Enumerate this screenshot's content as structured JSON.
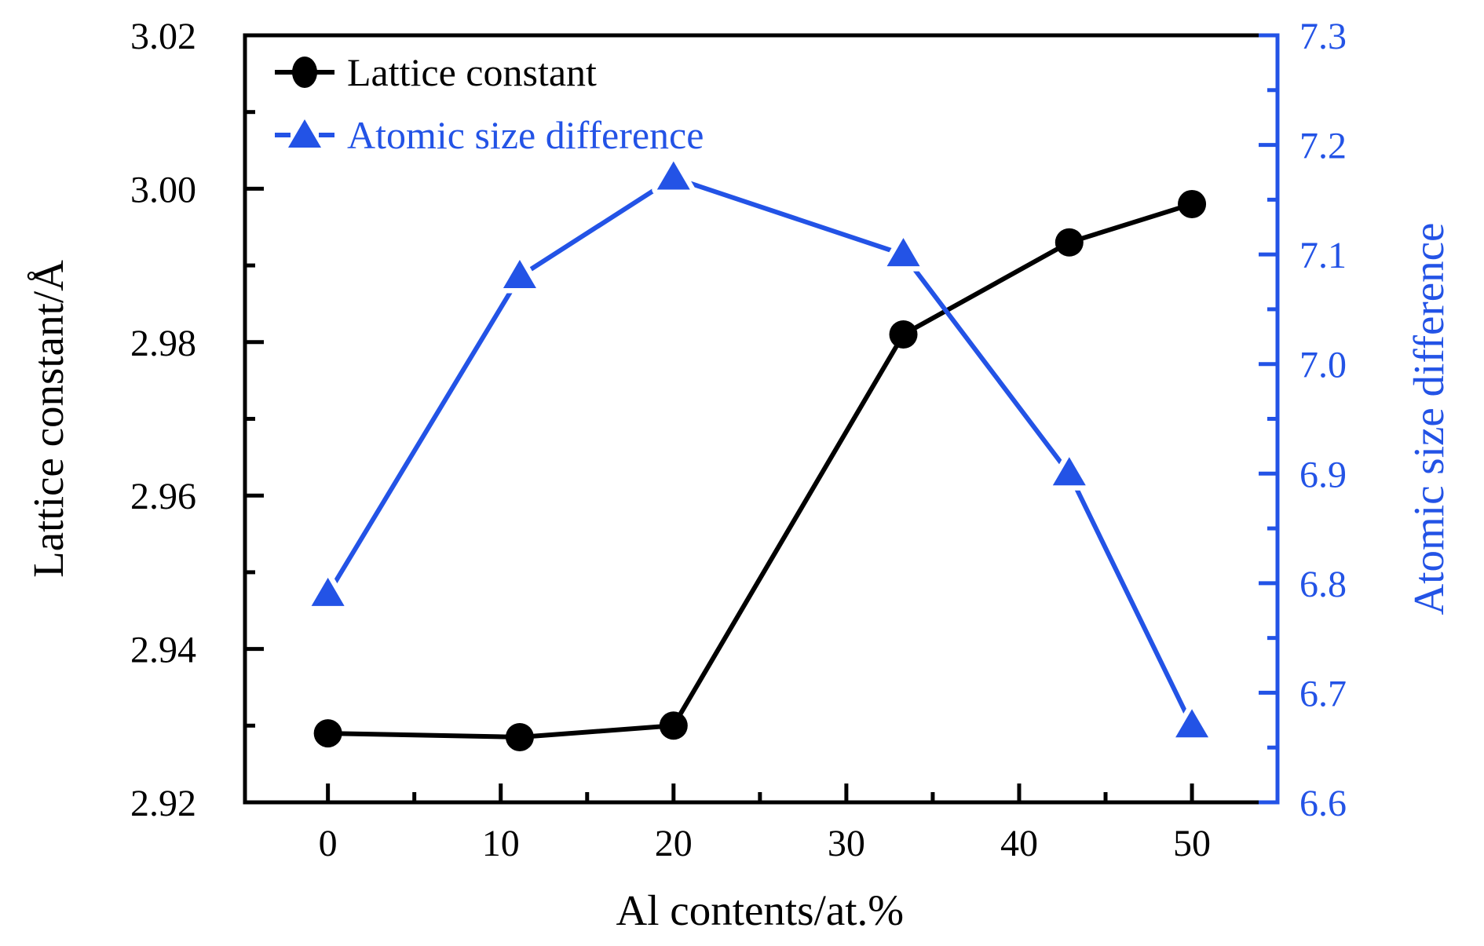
{
  "figure": {
    "background": "#ffffff",
    "accent_blue": "#2353e6",
    "series_black": "#000000"
  },
  "chart_data": {
    "type": "line",
    "title": "",
    "xlabel": "Al contents/at.%",
    "ylabel_left": "Lattice constant/Å",
    "ylabel_right": "Atomic size difference",
    "x": [
      0,
      11.1,
      20,
      33.3,
      42.9,
      50
    ],
    "series": [
      {
        "name": "Lattice constant",
        "axis": "left",
        "color": "#000000",
        "marker": "circle",
        "values": [
          2.929,
          2.9285,
          2.93,
          2.981,
          2.993,
          2.998
        ]
      },
      {
        "name": "Atomic size difference",
        "axis": "right",
        "color": "#2353e6",
        "marker": "triangle",
        "values": [
          6.79,
          7.08,
          7.17,
          7.1,
          6.9,
          6.67
        ]
      }
    ],
    "xlim": [
      -4.8,
      54.95
    ],
    "ylim_left": [
      2.92,
      3.02
    ],
    "ylim_right": [
      6.6,
      7.3
    ],
    "x_tick_values": [
      0,
      10,
      20,
      30,
      40,
      50
    ],
    "x_tick_labels": [
      "0",
      "10",
      "20",
      "30",
      "40",
      "50"
    ],
    "x_minor_ticks": [
      5,
      15,
      25,
      35,
      45
    ],
    "y_left_tick_values": [
      2.92,
      2.94,
      2.96,
      2.98,
      3.0,
      3.02
    ],
    "y_left_tick_labels": [
      "2.92",
      "2.94",
      "2.96",
      "2.98",
      "3.00",
      "3.02"
    ],
    "y_left_minor_ticks": [
      2.93,
      2.95,
      2.97,
      2.99,
      3.01
    ],
    "y_right_tick_values": [
      6.6,
      6.7,
      6.8,
      6.9,
      7.0,
      7.1,
      7.2,
      7.3
    ],
    "y_right_tick_labels": [
      "6.6",
      "6.7",
      "6.8",
      "6.9",
      "7.0",
      "7.1",
      "7.2",
      "7.3"
    ],
    "y_right_minor_ticks": [
      6.65,
      6.75,
      6.85,
      6.95,
      7.05,
      7.15,
      7.25
    ],
    "grid": false,
    "legend_position": "upper-left-inside"
  }
}
